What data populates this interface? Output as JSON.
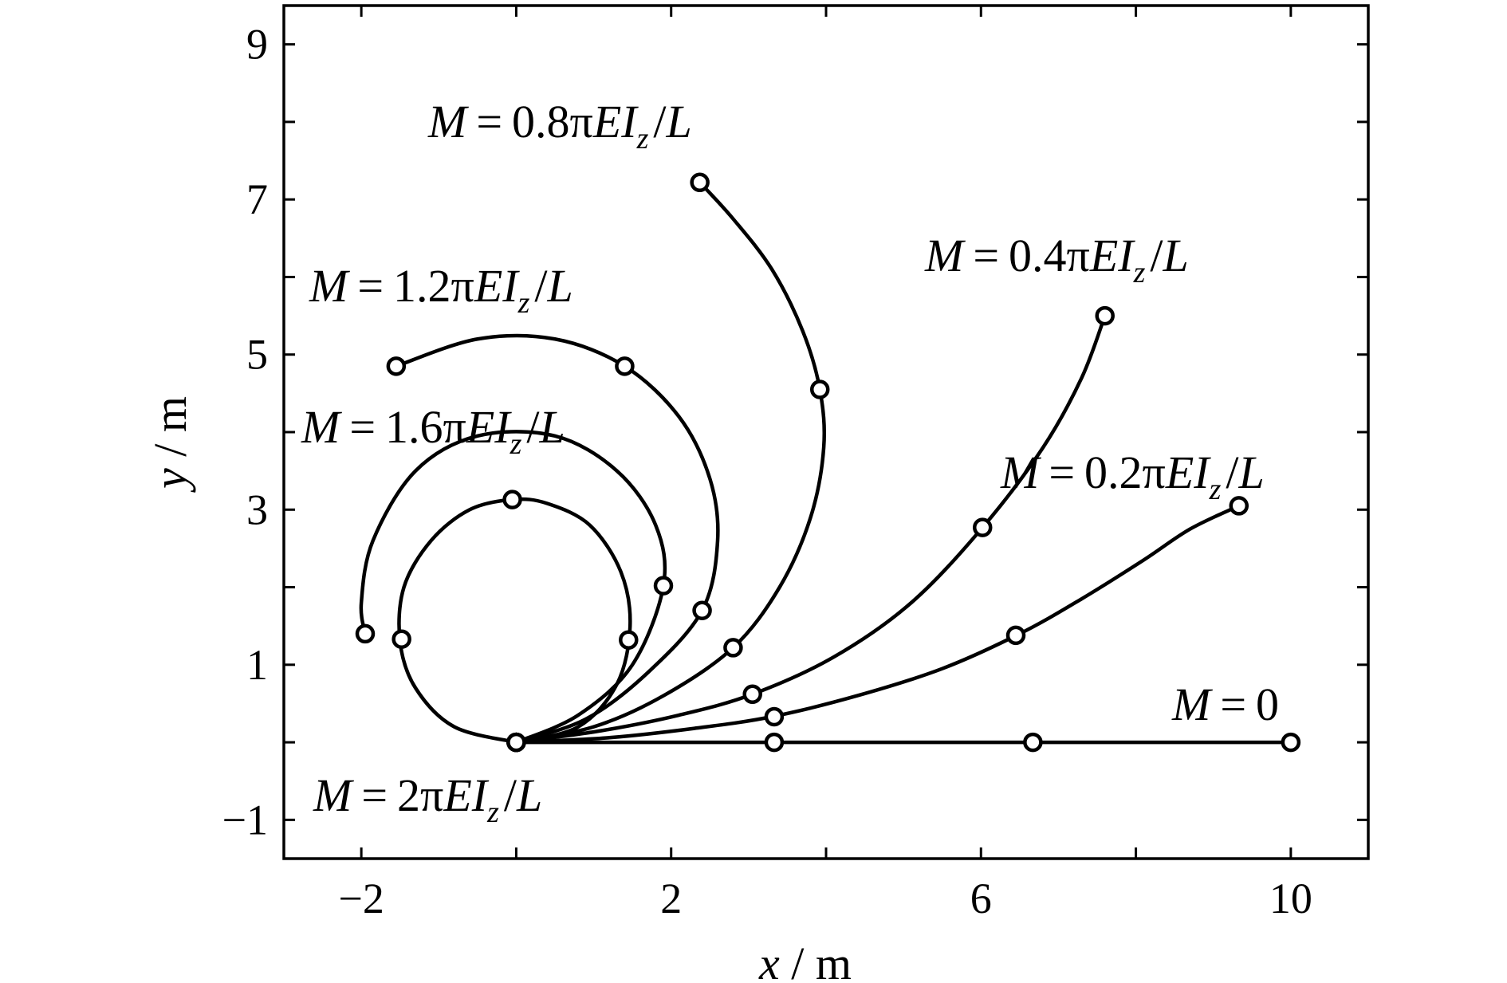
{
  "chart_data": {
    "type": "line",
    "xlabel": {
      "var": "x",
      "unit": "m"
    },
    "ylabel": {
      "var": "y",
      "unit": "m"
    },
    "xlim": [
      -3,
      11
    ],
    "ylim": [
      -1.5,
      9.5
    ],
    "x_ticks": [
      -2,
      2,
      6,
      10
    ],
    "x_ticks_minor": [
      -2,
      0,
      2,
      4,
      6,
      8,
      10
    ],
    "y_ticks": [
      -1,
      1,
      3,
      5,
      7,
      9
    ],
    "y_ticks_minor": [
      -1,
      0,
      1,
      2,
      3,
      4,
      5,
      6,
      7,
      8,
      9
    ],
    "grid": false,
    "legend": "none",
    "series": [
      {
        "label": {
          "M": "M",
          "eq": "=",
          "coef": "0",
          "tail": ""
        },
        "points": [
          [
            0,
            0
          ],
          [
            2,
            0
          ],
          [
            4,
            0
          ],
          [
            6,
            0
          ],
          [
            8,
            0
          ],
          [
            10,
            0
          ]
        ],
        "markers": [
          [
            0,
            0
          ],
          [
            3.33,
            0
          ],
          [
            6.67,
            0
          ],
          [
            10,
            0
          ]
        ]
      },
      {
        "label": {
          "M": "M",
          "eq": "=",
          "coef": "0.2π",
          "EI": "EI",
          "z": "z",
          "slash": "/",
          "L": "L"
        },
        "points": [
          [
            0,
            0
          ],
          [
            1.2,
            0.06
          ],
          [
            2.3,
            0.18
          ],
          [
            3.3,
            0.33
          ],
          [
            4.4,
            0.6
          ],
          [
            5.5,
            0.95
          ],
          [
            6.5,
            1.4
          ],
          [
            7.3,
            1.85
          ],
          [
            8.1,
            2.35
          ],
          [
            8.7,
            2.75
          ],
          [
            9.33,
            3.05
          ]
        ],
        "markers": [
          [
            0,
            0
          ],
          [
            3.33,
            0.33
          ],
          [
            6.45,
            1.38
          ],
          [
            9.33,
            3.05
          ]
        ]
      },
      {
        "label": {
          "M": "M",
          "eq": "=",
          "coef": "0.4π",
          "EI": "EI",
          "z": "z",
          "slash": "/",
          "L": "L"
        },
        "points": [
          [
            0,
            0
          ],
          [
            1.1,
            0.15
          ],
          [
            2.1,
            0.35
          ],
          [
            3.05,
            0.62
          ],
          [
            4.1,
            1.1
          ],
          [
            5.1,
            1.8
          ],
          [
            6.02,
            2.77
          ],
          [
            6.8,
            3.8
          ],
          [
            7.3,
            4.7
          ],
          [
            7.6,
            5.5
          ]
        ],
        "markers": [
          [
            0,
            0
          ],
          [
            3.05,
            0.62
          ],
          [
            6.02,
            2.77
          ],
          [
            7.6,
            5.5
          ]
        ]
      },
      {
        "label": {
          "M": "M",
          "eq": "=",
          "coef": "0.8π",
          "EI": "EI",
          "z": "z",
          "slash": "/",
          "L": "L"
        },
        "points": [
          [
            0,
            0
          ],
          [
            1.0,
            0.2
          ],
          [
            1.9,
            0.6
          ],
          [
            2.8,
            1.22
          ],
          [
            3.4,
            2.0
          ],
          [
            3.8,
            2.9
          ],
          [
            3.97,
            3.8
          ],
          [
            3.92,
            4.55
          ],
          [
            3.7,
            5.3
          ],
          [
            3.3,
            6.1
          ],
          [
            2.8,
            6.75
          ],
          [
            2.37,
            7.22
          ]
        ],
        "markers": [
          [
            0,
            0
          ],
          [
            2.8,
            1.22
          ],
          [
            3.92,
            4.55
          ],
          [
            2.37,
            7.22
          ]
        ]
      },
      {
        "label": {
          "M": "M",
          "eq": "=",
          "coef": "1.2π",
          "EI": "EI",
          "z": "z",
          "slash": "/",
          "L": "L"
        },
        "points": [
          [
            0,
            0
          ],
          [
            0.9,
            0.3
          ],
          [
            1.7,
            0.9
          ],
          [
            2.4,
            1.7
          ],
          [
            2.6,
            2.6
          ],
          [
            2.5,
            3.4
          ],
          [
            2.1,
            4.2
          ],
          [
            1.4,
            4.85
          ],
          [
            0.5,
            5.2
          ],
          [
            -0.5,
            5.2
          ],
          [
            -1.55,
            4.85
          ]
        ],
        "markers": [
          [
            0,
            0
          ],
          [
            2.4,
            1.7
          ],
          [
            1.4,
            4.85
          ],
          [
            -1.55,
            4.85
          ]
        ]
      },
      {
        "label": {
          "M": "M",
          "eq": "=",
          "coef": "1.6π",
          "EI": "EI",
          "z": "z",
          "slash": "/",
          "L": "L"
        },
        "points": [
          [
            0,
            0
          ],
          [
            0.8,
            0.35
          ],
          [
            1.5,
            1.0
          ],
          [
            1.9,
            2.02
          ],
          [
            1.8,
            2.8
          ],
          [
            1.3,
            3.5
          ],
          [
            0.5,
            3.95
          ],
          [
            -0.5,
            3.95
          ],
          [
            -1.3,
            3.5
          ],
          [
            -1.85,
            2.6
          ],
          [
            -2.0,
            1.8
          ],
          [
            -1.95,
            1.4
          ]
        ],
        "markers": [
          [
            0,
            0
          ],
          [
            1.9,
            2.02
          ],
          [
            -1.95,
            1.4
          ]
        ]
      },
      {
        "label": {
          "M": "M",
          "eq": "=",
          "coef": "2π",
          "EI": "EI",
          "z": "z",
          "slash": "/",
          "L": "L"
        },
        "points": [
          [
            0,
            0
          ],
          [
            0.8,
            0.2
          ],
          [
            1.3,
            0.75
          ],
          [
            1.47,
            1.5
          ],
          [
            1.35,
            2.2
          ],
          [
            0.95,
            2.8
          ],
          [
            0.4,
            3.08
          ],
          [
            -0.05,
            3.13
          ],
          [
            -0.6,
            3.0
          ],
          [
            -1.1,
            2.6
          ],
          [
            -1.45,
            2.0
          ],
          [
            -1.5,
            1.3
          ],
          [
            -1.3,
            0.7
          ],
          [
            -0.8,
            0.2
          ],
          [
            0,
            0
          ]
        ],
        "markers": [
          [
            0,
            0
          ],
          [
            1.45,
            1.32
          ],
          [
            -0.05,
            3.13
          ],
          [
            -1.48,
            1.33
          ]
        ]
      }
    ]
  }
}
